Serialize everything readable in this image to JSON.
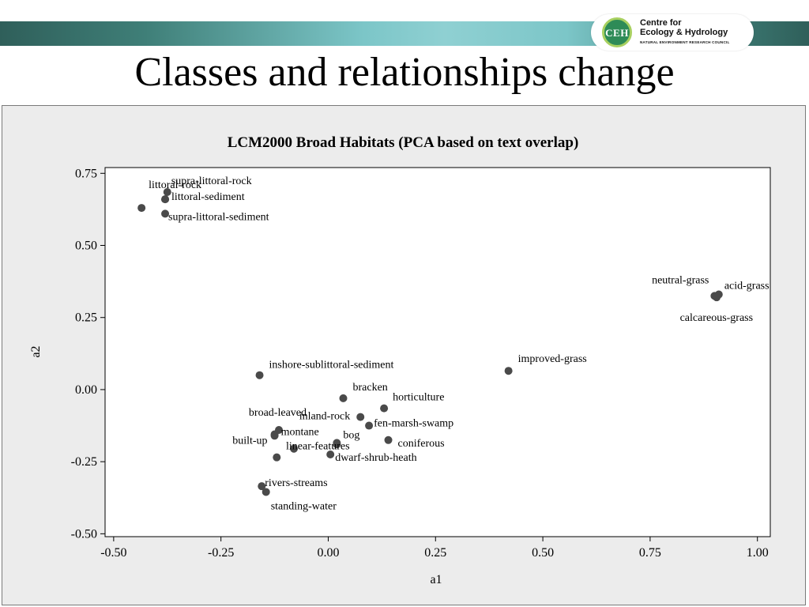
{
  "slide": {
    "title": "Classes and relationships change"
  },
  "logo": {
    "abbrev": "CEH",
    "line1": "Centre for",
    "line2": "Ecology & Hydrology",
    "line3": "NATURAL ENVIRONMENT RESEARCH COUNCIL"
  },
  "chart_data": {
    "type": "scatter",
    "title": "LCM2000 Broad Habitats (PCA based on text overlap)",
    "xlabel": "a1",
    "ylabel": "a2",
    "xlim": [
      -0.52,
      1.03
    ],
    "ylim": [
      -0.51,
      0.77
    ],
    "xticks": [
      -0.5,
      -0.25,
      0.0,
      0.25,
      0.5,
      0.75,
      1.0
    ],
    "yticks": [
      -0.5,
      -0.25,
      0.0,
      0.25,
      0.5,
      0.75
    ],
    "xtick_labels": [
      "-0.50",
      "-0.25",
      "0.00",
      "0.25",
      "0.50",
      "0.75",
      "1.00"
    ],
    "ytick_labels": [
      "-0.50",
      "-0.25",
      "0.00",
      "0.25",
      "0.50",
      "0.75"
    ],
    "grid": false,
    "marker_color": "#4a4a4a",
    "points": [
      {
        "label": "supra-littoral-rock",
        "x": -0.375,
        "y": 0.685,
        "anchor": "start",
        "dx": 5,
        "dy": -14
      },
      {
        "label": "littoral-rock",
        "x": -0.38,
        "y": 0.66,
        "anchor": "end",
        "dx": 46,
        "dy": -18
      },
      {
        "label": "littoral-sediment",
        "x": -0.38,
        "y": 0.66,
        "anchor": "start",
        "dx": 8,
        "dy": -3
      },
      {
        "label": "",
        "x": -0.435,
        "y": 0.63,
        "anchor": "start",
        "dx": 0,
        "dy": 0
      },
      {
        "label": "supra-littoral-sediment",
        "x": -0.38,
        "y": 0.61,
        "anchor": "start",
        "dx": 4,
        "dy": 4
      },
      {
        "label": "neutral-grass",
        "x": 0.9,
        "y": 0.325,
        "anchor": "end",
        "dx": -7,
        "dy": -20
      },
      {
        "label": "acid-grass",
        "x": 0.91,
        "y": 0.33,
        "anchor": "start",
        "dx": 7,
        "dy": -11
      },
      {
        "label": "calcareous-grass",
        "x": 0.905,
        "y": 0.32,
        "anchor": "end",
        "dx": 46,
        "dy": 26
      },
      {
        "label": "improved-grass",
        "x": 0.42,
        "y": 0.065,
        "anchor": "start",
        "dx": 12,
        "dy": -15
      },
      {
        "label": "inshore-sublittoral-sediment",
        "x": -0.16,
        "y": 0.05,
        "anchor": "start",
        "dx": 12,
        "dy": -13
      },
      {
        "label": "bracken",
        "x": 0.035,
        "y": -0.03,
        "anchor": "start",
        "dx": 12,
        "dy": -14
      },
      {
        "label": "horticulture",
        "x": 0.13,
        "y": -0.065,
        "anchor": "start",
        "dx": 11,
        "dy": -14
      },
      {
        "label": "inland-rock",
        "x": 0.075,
        "y": -0.095,
        "anchor": "end",
        "dx": -13,
        "dy": -1
      },
      {
        "label": "fen-marsh-swamp",
        "x": 0.095,
        "y": -0.125,
        "anchor": "start",
        "dx": 6,
        "dy": -3
      },
      {
        "label": "broad-leaved",
        "x": -0.115,
        "y": -0.14,
        "anchor": "end",
        "dx": 35,
        "dy": -22
      },
      {
        "label": "montane",
        "x": -0.125,
        "y": -0.155,
        "anchor": "start",
        "dx": 8,
        "dy": -3
      },
      {
        "label": "bog",
        "x": 0.02,
        "y": -0.19,
        "anchor": "start",
        "dx": 8,
        "dy": -12
      },
      {
        "label": "coniferous",
        "x": 0.14,
        "y": -0.175,
        "anchor": "start",
        "dx": 12,
        "dy": 4
      },
      {
        "label": "built-up",
        "x": -0.125,
        "y": -0.16,
        "anchor": "end",
        "dx": -9,
        "dy": 6
      },
      {
        "label": "linear-features",
        "x": -0.08,
        "y": -0.205,
        "anchor": "start",
        "dx": -10,
        "dy": -3
      },
      {
        "label": "",
        "x": 0.02,
        "y": -0.185,
        "anchor": "start",
        "dx": 0,
        "dy": 0
      },
      {
        "label": "dwarf-shrub-heath",
        "x": 0.005,
        "y": -0.225,
        "anchor": "start",
        "dx": 6,
        "dy": 4
      },
      {
        "label": "",
        "x": -0.12,
        "y": -0.235,
        "anchor": "start",
        "dx": 0,
        "dy": 0
      },
      {
        "label": "rivers-streams",
        "x": -0.155,
        "y": -0.335,
        "anchor": "start",
        "dx": 4,
        "dy": -4
      },
      {
        "label": "standing-water",
        "x": -0.145,
        "y": -0.355,
        "anchor": "start",
        "dx": 6,
        "dy": 18
      }
    ]
  }
}
